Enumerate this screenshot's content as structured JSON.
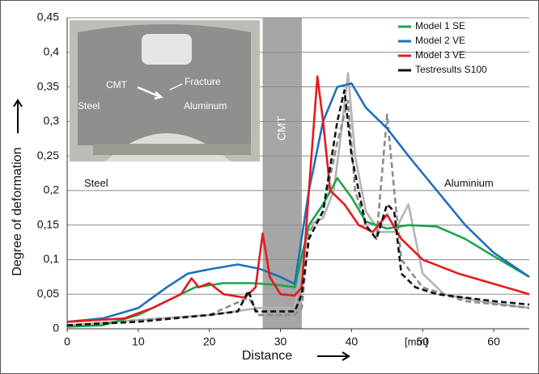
{
  "chart_data": {
    "type": "line",
    "xlabel": "Distance",
    "ylabel": "Degree of deformation",
    "annotations": {
      "steel": "Steel",
      "aluminium": "Aluminium",
      "cmt": "CMT",
      "unit": "[mm]"
    },
    "inset_labels": {
      "cmt": "CMT",
      "fracture": "Fracture",
      "steel": "Steel",
      "aluminum": "Aluminum"
    },
    "cmt_band": [
      27.5,
      33
    ],
    "xlim": [
      0,
      65
    ],
    "xticks": [
      0,
      10,
      20,
      30,
      40,
      50,
      60
    ],
    "ylim": [
      0,
      0.45
    ],
    "yticks": [
      0,
      {
        "value": 0.05,
        "label": "0,05"
      },
      {
        "value": 0.1,
        "label": "0,1"
      },
      {
        "value": 0.15,
        "label": "0,15"
      },
      {
        "value": 0.2,
        "label": "0,2"
      },
      {
        "value": 0.25,
        "label": "0,25"
      },
      {
        "value": 0.3,
        "label": "0,3"
      },
      {
        "value": 0.35,
        "label": "0,35"
      },
      {
        "value": 0.4,
        "label": "0,4"
      },
      {
        "value": 0.45,
        "label": "0,45"
      }
    ],
    "grid": true,
    "legend": "upper right",
    "series": [
      {
        "name": "Model 1 SE",
        "color": "#1aa64a",
        "dash": false,
        "x": [
          0,
          5,
          10,
          15,
          18,
          22,
          26,
          30,
          32,
          34,
          36,
          38,
          40,
          42,
          45,
          48,
          52,
          56,
          60,
          65
        ],
        "values": [
          0.003,
          0.005,
          0.02,
          0.045,
          0.06,
          0.066,
          0.066,
          0.063,
          0.06,
          0.15,
          0.18,
          0.218,
          0.19,
          0.155,
          0.145,
          0.15,
          0.148,
          0.13,
          0.105,
          0.075
        ]
      },
      {
        "name": "Model 2 VE",
        "color": "#1f6fbf",
        "dash": false,
        "x": [
          0,
          5,
          10,
          14,
          17,
          20,
          24,
          27,
          30,
          32,
          34,
          36,
          38,
          40,
          42,
          45,
          48,
          52,
          56,
          60,
          65
        ],
        "values": [
          0.01,
          0.015,
          0.03,
          0.06,
          0.08,
          0.086,
          0.093,
          0.087,
          0.075,
          0.065,
          0.2,
          0.3,
          0.35,
          0.355,
          0.32,
          0.29,
          0.25,
          0.2,
          0.15,
          0.11,
          0.075
        ]
      },
      {
        "name": "Model 3 VE",
        "color": "#e5191e",
        "dash": false,
        "x": [
          0,
          8,
          12,
          16,
          17.5,
          18.5,
          20,
          22,
          25,
          26.5,
          27.5,
          28.5,
          30,
          32,
          33,
          34,
          35.2,
          36,
          37,
          39,
          41,
          43,
          45,
          47,
          50,
          55,
          60,
          65
        ],
        "values": [
          0.01,
          0.015,
          0.03,
          0.05,
          0.073,
          0.06,
          0.066,
          0.05,
          0.045,
          0.06,
          0.138,
          0.075,
          0.05,
          0.048,
          0.06,
          0.2,
          0.365,
          0.3,
          0.2,
          0.18,
          0.15,
          0.14,
          0.165,
          0.13,
          0.1,
          0.08,
          0.065,
          0.05
        ]
      },
      {
        "name": "Testresults S100",
        "color": "#111111",
        "dash": true,
        "x": [
          0,
          10,
          15,
          20,
          24,
          25.5,
          26.5,
          32,
          33,
          34,
          36,
          38,
          39,
          40,
          42,
          43.5,
          45,
          46,
          47,
          49,
          52,
          56,
          60,
          65
        ],
        "values": [
          0.005,
          0.01,
          0.015,
          0.02,
          0.025,
          0.055,
          0.025,
          0.025,
          0.05,
          0.13,
          0.17,
          0.3,
          0.345,
          0.25,
          0.15,
          0.13,
          0.18,
          0.17,
          0.08,
          0.06,
          0.05,
          0.045,
          0.04,
          0.035
        ]
      },
      {
        "color": "#b4b4b4",
        "dash": false,
        "x": [
          0,
          20,
          27,
          32,
          34,
          36,
          37.5,
          38.5,
          39.5,
          40.5,
          42,
          44,
          46,
          48,
          50,
          53,
          58,
          65
        ],
        "values": [
          0.005,
          0.02,
          0.03,
          0.03,
          0.15,
          0.16,
          0.2,
          0.28,
          0.37,
          0.25,
          0.17,
          0.14,
          0.14,
          0.18,
          0.08,
          0.05,
          0.04,
          0.03
        ]
      },
      {
        "color": "#8c8c8c",
        "dash": true,
        "x": [
          0,
          20,
          25.5,
          27,
          32,
          33,
          34,
          36,
          38,
          39.5,
          40.5,
          42,
          43.5,
          45,
          46,
          47,
          50,
          56,
          65
        ],
        "values": [
          0.005,
          0.02,
          0.045,
          0.02,
          0.02,
          0.03,
          0.14,
          0.17,
          0.27,
          0.33,
          0.2,
          0.15,
          0.13,
          0.31,
          0.2,
          0.1,
          0.06,
          0.04,
          0.03
        ]
      }
    ]
  }
}
